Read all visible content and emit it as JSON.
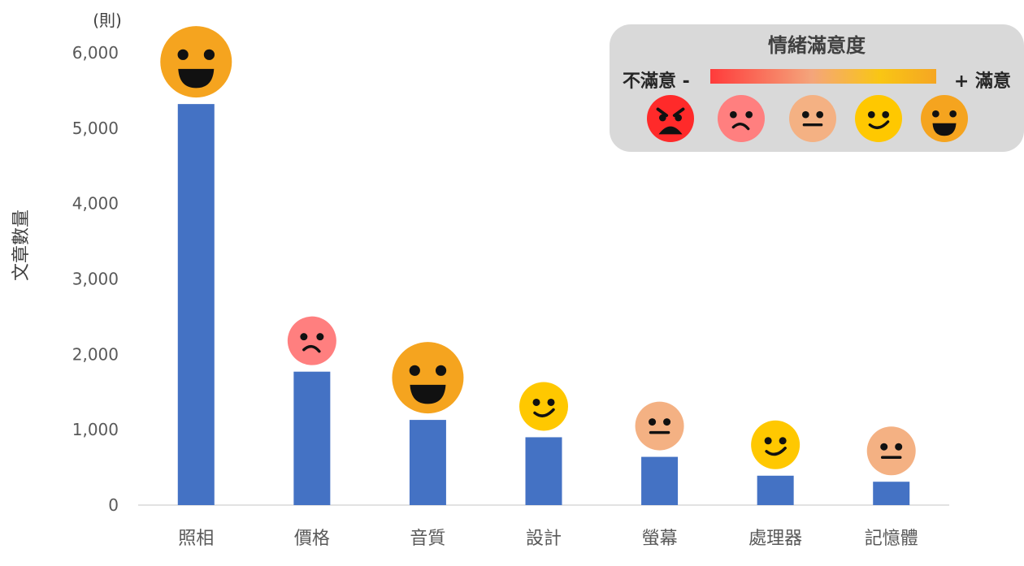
{
  "chart_data": {
    "type": "bar",
    "categories": [
      "照相",
      "價格",
      "音質",
      "設計",
      "螢幕",
      "處理器",
      "記憶體"
    ],
    "values": [
      5320,
      1770,
      1130,
      900,
      640,
      390,
      310
    ],
    "sentiment": [
      "very-happy",
      "sad",
      "very-happy",
      "smile",
      "neutral",
      "smile",
      "neutral"
    ],
    "ylabel": "文章數量",
    "unit_label": "(則)",
    "ylim": [
      0,
      6000
    ],
    "yticks": [
      0,
      1000,
      2000,
      3000,
      4000,
      5000,
      6000
    ],
    "ytick_labels": [
      "0",
      "1,000",
      "2,000",
      "3,000",
      "4,000",
      "5,000",
      "6,000"
    ],
    "bar_color": "#4472c4",
    "grid": false
  },
  "legend": {
    "title": "情緒滿意度",
    "low_label": "不滿意 -",
    "high_label": "+ 滿意",
    "faces": [
      "angry",
      "sad",
      "neutral",
      "smile",
      "very-happy"
    ]
  },
  "face_colors": {
    "angry": "#ff2a2a",
    "sad": "#ff7f7f",
    "neutral": "#f4b183",
    "smile": "#ffc800",
    "very-happy": "#f5a41f"
  }
}
